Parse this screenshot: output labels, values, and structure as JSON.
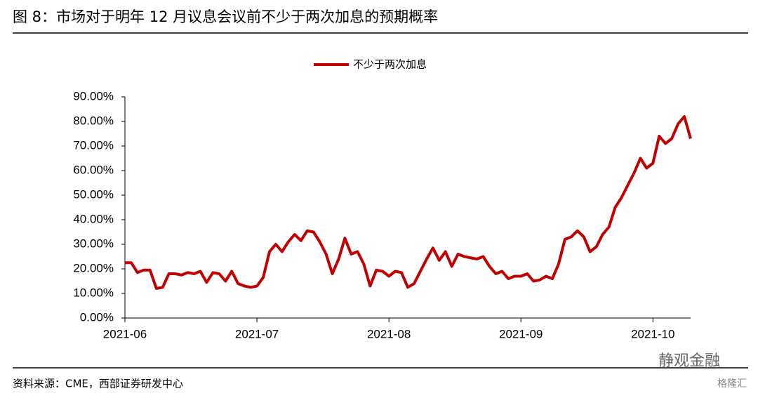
{
  "chart_data": {
    "type": "line",
    "title": "图 8：市场对于明年 12 月议息会议前不少于两次加息的预期概率",
    "source": "资料来源：CME，西部证券研发中心",
    "watermark": "静观金融",
    "watermark2": "格隆汇",
    "categories": [
      "2021-06",
      null,
      null,
      null,
      null,
      null,
      null,
      null,
      null,
      null,
      null,
      null,
      null,
      null,
      null,
      null,
      null,
      null,
      null,
      null,
      null,
      "2021-07",
      null,
      null,
      null,
      null,
      null,
      null,
      null,
      null,
      null,
      null,
      null,
      null,
      null,
      null,
      null,
      null,
      null,
      null,
      null,
      null,
      "2021-08",
      null,
      null,
      null,
      null,
      null,
      null,
      null,
      null,
      null,
      null,
      null,
      null,
      null,
      null,
      null,
      null,
      null,
      null,
      null,
      null,
      "2021-09",
      null,
      null,
      null,
      null,
      null,
      null,
      null,
      null,
      null,
      null,
      null,
      null,
      null,
      null,
      null,
      null,
      null,
      null,
      null,
      null,
      "2021-10",
      null,
      null,
      null,
      null,
      null,
      null
    ],
    "series": [
      {
        "name": "不少于两次加息",
        "color": "#c00000",
        "values": [
          22.5,
          22.5,
          18.5,
          19.5,
          19.5,
          12,
          12.5,
          18,
          18,
          17.5,
          18.5,
          18,
          19,
          14.5,
          18.5,
          18,
          15,
          19,
          14,
          13,
          12.5,
          13,
          16.5,
          27,
          30,
          27,
          31,
          34,
          31.5,
          35.5,
          35,
          31,
          26,
          18,
          24,
          32.5,
          26,
          27,
          22,
          13,
          19.5,
          19,
          17,
          19,
          18.5,
          12.5,
          14,
          19,
          24,
          28.5,
          23.5,
          27,
          21,
          26,
          25,
          24.5,
          24,
          25,
          21,
          18,
          19,
          16,
          17,
          17,
          18,
          15,
          15.5,
          17,
          16,
          22,
          32,
          33,
          35.5,
          33,
          27,
          29,
          34,
          37,
          45,
          49,
          54,
          59,
          65,
          61,
          63,
          74,
          71,
          73,
          79,
          82,
          73
        ]
      }
    ],
    "ylim": [
      0,
      90
    ],
    "yticks": [
      {
        "value": 0,
        "label": "0.00%"
      },
      {
        "value": 10,
        "label": "10.00%"
      },
      {
        "value": 20,
        "label": "20.00%"
      },
      {
        "value": 30,
        "label": "30.00%"
      },
      {
        "value": 40,
        "label": "40.00%"
      },
      {
        "value": 50,
        "label": "50.00%"
      },
      {
        "value": 60,
        "label": "60.00%"
      },
      {
        "value": 70,
        "label": "70.00%"
      },
      {
        "value": 80,
        "label": "80.00%"
      },
      {
        "value": 90,
        "label": "90.00%"
      }
    ],
    "legend": "top"
  }
}
